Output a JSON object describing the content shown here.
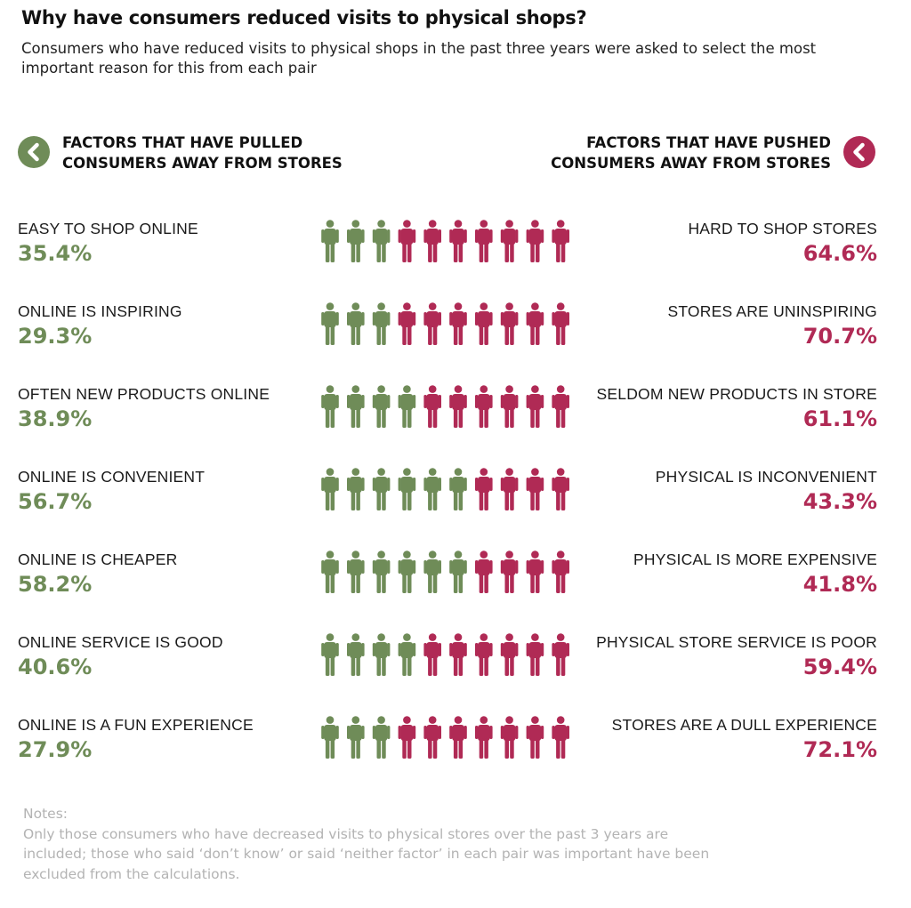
{
  "title": "Why have consumers reduced visits to physical shops?",
  "subtitle": "Consumers who have reduced visits to physical shops in the past three years were asked to select the most important reason for this from each pair",
  "headers": {
    "left": [
      "FACTORS THAT HAVE PULLED",
      "CONSUMERS AWAY FROM STORES"
    ],
    "right": [
      "FACTORS THAT HAVE PUSHED",
      "CONSUMERS AWAY FROM STORES"
    ],
    "left_icon": "chevron-left-icon",
    "right_icon": "chevron-left-icon"
  },
  "colors": {
    "pull": "#6f8c58",
    "push": "#b02a55"
  },
  "chart_data": {
    "type": "pictogram",
    "icons_per_row": 10,
    "icon": "person-icon",
    "rows": [
      {
        "left_label": "EASY TO SHOP ONLINE",
        "left_value": "35.4%",
        "right_label": "HARD TO SHOP STORES",
        "right_value": "64.6%",
        "green_icons": 3
      },
      {
        "left_label": "ONLINE IS INSPIRING",
        "left_value": "29.3%",
        "right_label": "STORES ARE UNINSPIRING",
        "right_value": "70.7%",
        "green_icons": 3
      },
      {
        "left_label": "OFTEN NEW PRODUCTS ONLINE",
        "left_value": "38.9%",
        "right_label": "SELDOM NEW PRODUCTS IN STORE",
        "right_value": "61.1%",
        "green_icons": 4
      },
      {
        "left_label": "ONLINE IS CONVENIENT",
        "left_value": "56.7%",
        "right_label": "PHYSICAL IS INCONVENIENT",
        "right_value": "43.3%",
        "green_icons": 6
      },
      {
        "left_label": "ONLINE IS CHEAPER",
        "left_value": "58.2%",
        "right_label": "PHYSICAL IS MORE EXPENSIVE",
        "right_value": "41.8%",
        "green_icons": 6
      },
      {
        "left_label": "ONLINE SERVICE IS GOOD",
        "left_value": "40.6%",
        "right_label": "PHYSICAL STORE SERVICE IS POOR",
        "right_value": "59.4%",
        "green_icons": 4
      },
      {
        "left_label": "ONLINE IS A FUN EXPERIENCE",
        "left_value": "27.9%",
        "right_label": "STORES ARE A DULL EXPERIENCE",
        "right_value": "72.1%",
        "green_icons": 3
      }
    ]
  },
  "notes": {
    "heading": "Notes:",
    "text": "Only those consumers who have decreased visits to physical stores over the past 3 years are included; those who said ‘don’t know’ or said ‘neither factor’ in each pair was important have been excluded from the calculations."
  }
}
